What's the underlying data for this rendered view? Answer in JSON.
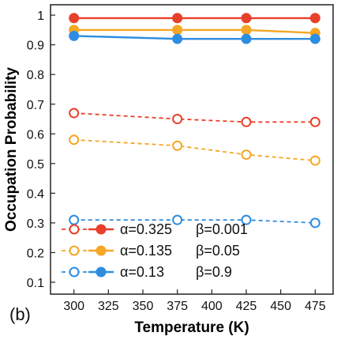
{
  "chart_data": {
    "type": "line",
    "panel_label": "(b)",
    "xlabel": "Temperature (K)",
    "ylabel": "Occupation Probability",
    "xlim": [
      283,
      488
    ],
    "ylim": [
      0.06,
      1.035
    ],
    "xticks": [
      300,
      325,
      350,
      375,
      400,
      425,
      450,
      475
    ],
    "yticks": [
      0.1,
      0.2,
      0.3,
      0.4,
      0.5,
      0.6,
      0.7,
      0.8,
      0.9,
      1.0
    ],
    "ytick_labels": [
      "0.1",
      "0.2",
      "0.3",
      "0.4",
      "0.5",
      "0.6",
      "0.7",
      "0.8",
      "0.9",
      "1"
    ],
    "x": [
      300,
      375,
      425,
      475
    ],
    "series": [
      {
        "group": "red",
        "style": "solid",
        "marker": "filled",
        "color": "#e8402a",
        "values": [
          0.99,
          0.99,
          0.99,
          0.99
        ]
      },
      {
        "group": "orange",
        "style": "solid",
        "marker": "filled",
        "color": "#f5a623",
        "values": [
          0.95,
          0.95,
          0.95,
          0.94
        ]
      },
      {
        "group": "blue",
        "style": "solid",
        "marker": "filled",
        "color": "#2e8de0",
        "values": [
          0.93,
          0.92,
          0.92,
          0.92
        ]
      },
      {
        "group": "red",
        "style": "dashed",
        "marker": "open",
        "color": "#e8402a",
        "values": [
          0.67,
          0.65,
          0.64,
          0.64
        ]
      },
      {
        "group": "orange",
        "style": "dashed",
        "marker": "open",
        "color": "#f5a623",
        "values": [
          0.58,
          0.56,
          0.53,
          0.51
        ]
      },
      {
        "group": "blue",
        "style": "dashed",
        "marker": "open",
        "color": "#2e8de0",
        "values": [
          0.31,
          0.31,
          0.31,
          0.3
        ]
      }
    ],
    "legend": {
      "placement": "bottom-left",
      "entries": [
        {
          "color": "#e8402a",
          "alpha": "α=0.325",
          "beta": "β=0.001"
        },
        {
          "color": "#f5a623",
          "alpha": "α=0.135",
          "beta": "β=0.05"
        },
        {
          "color": "#2e8de0",
          "alpha": "α=0.13",
          "beta": "β=0.9"
        }
      ]
    },
    "grid": false
  }
}
